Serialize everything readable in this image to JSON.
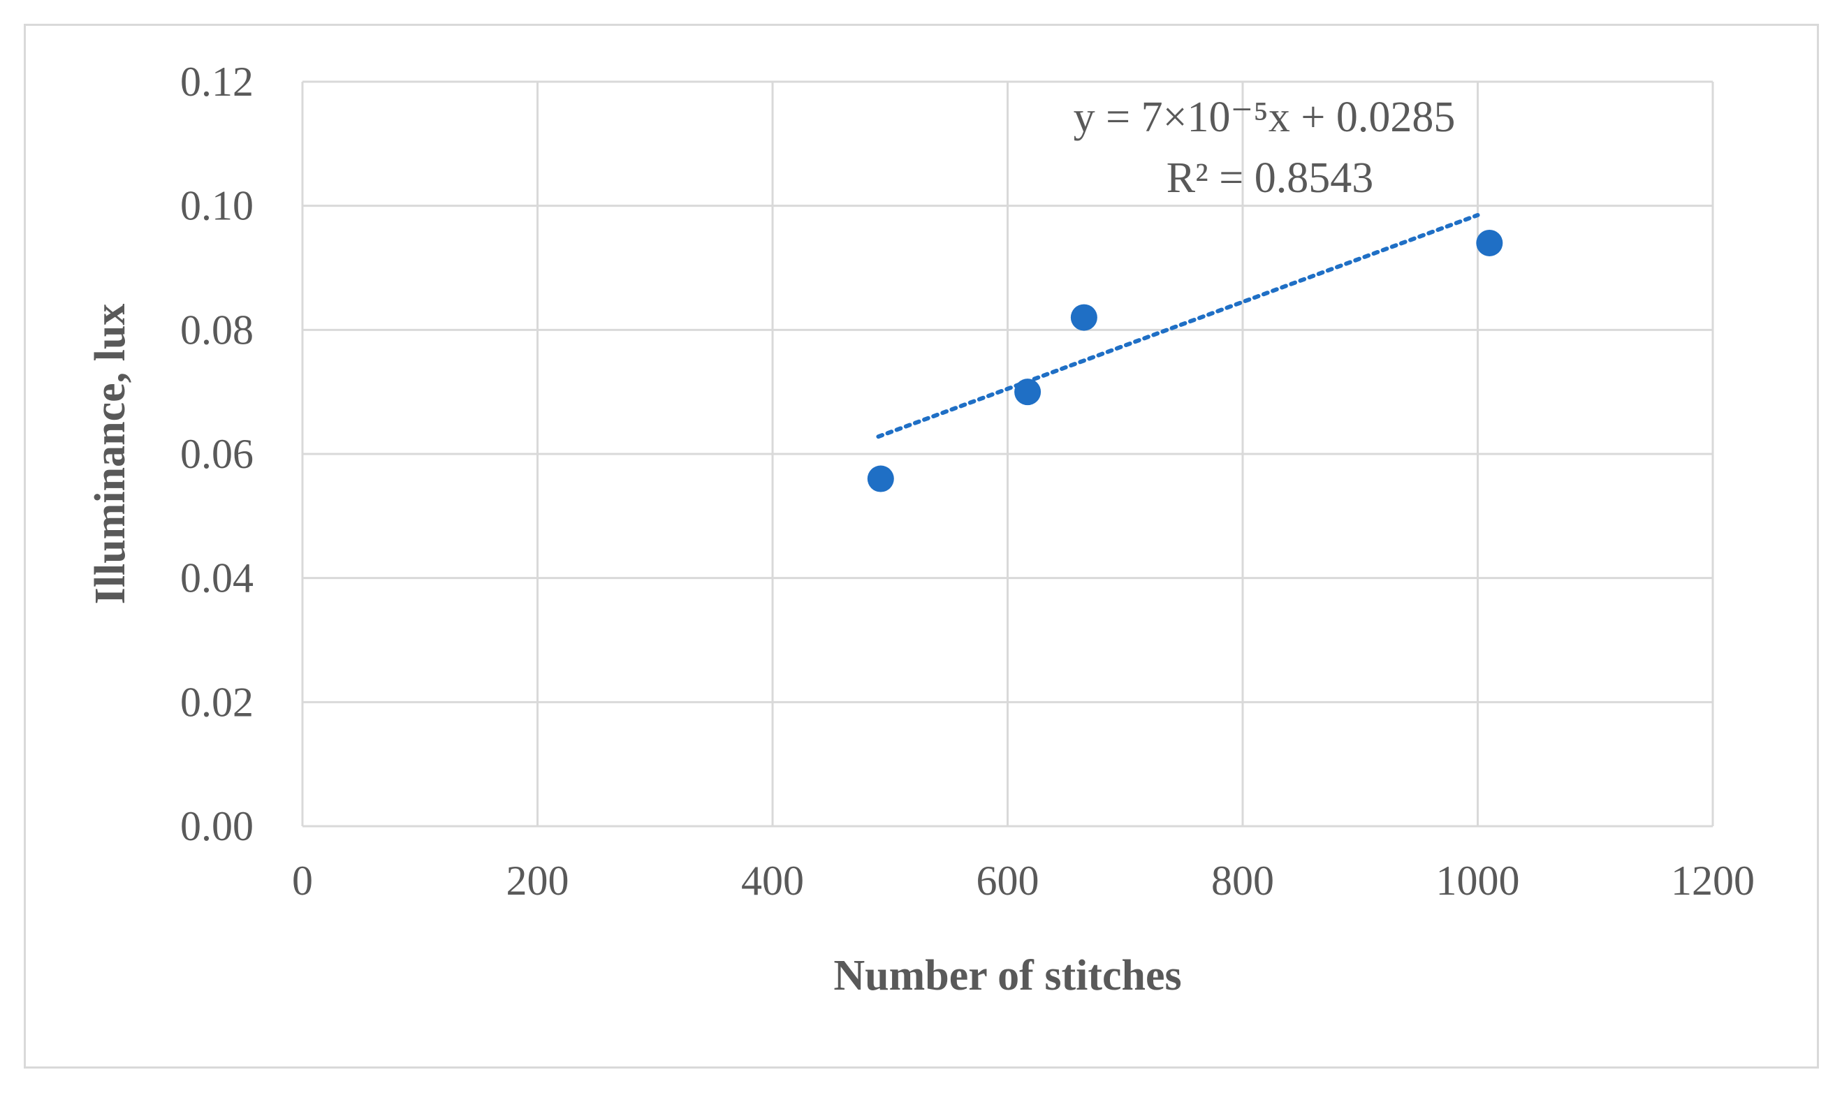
{
  "chart_data": {
    "type": "scatter",
    "title": "",
    "xlabel": "Number of stitches",
    "ylabel": "Illuminance, lux",
    "xlim": [
      0,
      1200
    ],
    "ylim": [
      0,
      0.12
    ],
    "x_ticks": [
      "0",
      "200",
      "400",
      "600",
      "800",
      "1000",
      "1200"
    ],
    "y_ticks": [
      "0.00",
      "0.02",
      "0.04",
      "0.06",
      "0.08",
      "0.10",
      "0.12"
    ],
    "grid": true,
    "legend": "none",
    "series": [
      {
        "color": "#1f6fc5",
        "points": [
          {
            "x": 492,
            "y": 0.056
          },
          {
            "x": 617,
            "y": 0.07
          },
          {
            "x": 665,
            "y": 0.082
          },
          {
            "x": 1010,
            "y": 0.094
          }
        ]
      }
    ],
    "trendline": {
      "type": "linear",
      "style": "dotted",
      "color": "#1f6fc5",
      "slope": 7e-05,
      "intercept": 0.0285,
      "x_range": [
        490,
        1000
      ],
      "equation_label": "y = 7×10⁻⁵x + 0.0285",
      "r2_label": "R² = 0.8543"
    },
    "colors": {
      "grid": "#d9d9d9",
      "text": "#595959",
      "marker": "#1f6fc5"
    }
  }
}
